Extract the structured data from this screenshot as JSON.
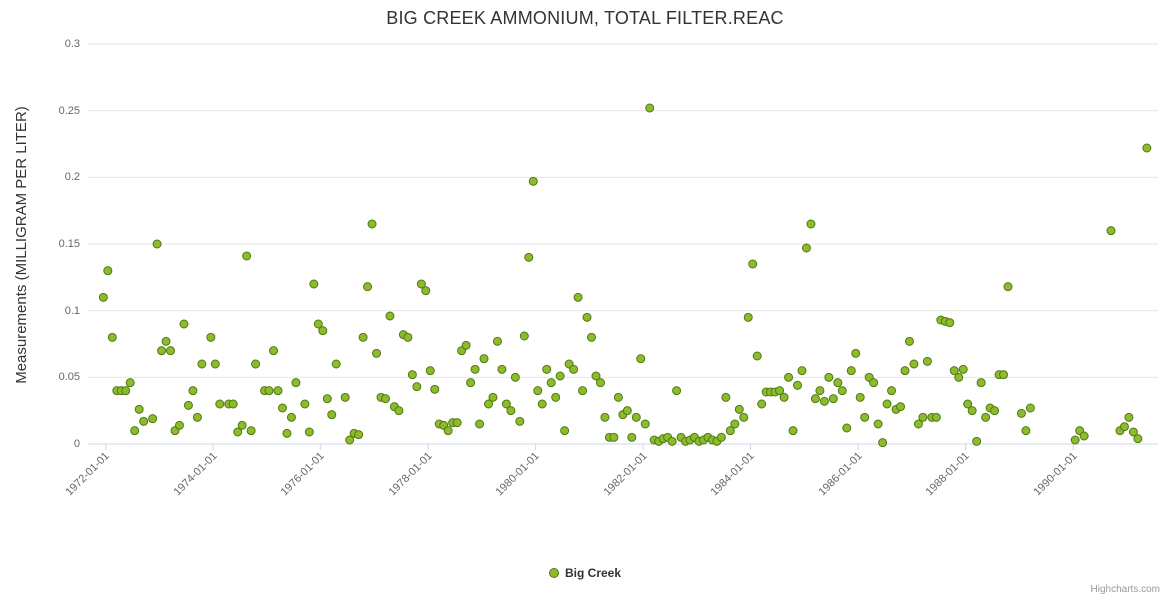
{
  "credits": "Highcharts.com",
  "chart_data": {
    "type": "scatter",
    "title": "BIG CREEK AMMONIUM, TOTAL FILTER.REAC",
    "xlabel": "",
    "ylabel": "Measurements (MILLIGRAM PER LITER)",
    "ylim": [
      0,
      0.3
    ],
    "y_ticks": [
      0,
      0.05,
      0.1,
      0.15,
      0.2,
      0.25,
      0.3
    ],
    "y_tick_labels": [
      "0",
      "0.05",
      "0.1",
      "0.15",
      "0.2",
      "0.25",
      "0.3"
    ],
    "x_ticks": [
      "1972-01-01",
      "1974-01-01",
      "1976-01-01",
      "1978-01-01",
      "1980-01-01",
      "1982-01-01",
      "1984-01-01",
      "1986-01-01",
      "1988-01-01",
      "1990-01-01"
    ],
    "x_range_decimal_years": [
      1971.67,
      1991.58
    ],
    "grid": true,
    "legend_position": "bottom",
    "colors": {
      "marker": "#8dbb2d",
      "marker_stroke": "#4f7a12",
      "grid": "#e6e6e6",
      "axis_line": "#ccd6eb",
      "title_text": "#333333",
      "tick_text": "#666666"
    },
    "series": [
      {
        "name": "Big Creek",
        "points": [
          [
            "1971-12",
            0.11
          ],
          [
            "1972-01",
            0.13
          ],
          [
            "1972-02",
            0.08
          ],
          [
            "1972-03",
            0.04
          ],
          [
            "1972-04",
            0.04
          ],
          [
            "1972-05",
            0.04
          ],
          [
            "1972-06",
            0.046
          ],
          [
            "1972-07",
            0.01
          ],
          [
            "1972-08",
            0.026
          ],
          [
            "1972-09",
            0.017
          ],
          [
            "1972-11",
            0.019
          ],
          [
            "1972-12",
            0.15
          ],
          [
            "1973-01",
            0.07
          ],
          [
            "1973-02",
            0.077
          ],
          [
            "1973-03",
            0.07
          ],
          [
            "1973-04",
            0.01
          ],
          [
            "1973-05",
            0.014
          ],
          [
            "1973-06",
            0.09
          ],
          [
            "1973-07",
            0.029
          ],
          [
            "1973-08",
            0.04
          ],
          [
            "1973-09",
            0.02
          ],
          [
            "1973-10",
            0.06
          ],
          [
            "1973-12",
            0.08
          ],
          [
            "1974-01",
            0.06
          ],
          [
            "1974-02",
            0.03
          ],
          [
            "1974-04",
            0.03
          ],
          [
            "1974-05",
            0.03
          ],
          [
            "1974-06",
            0.009
          ],
          [
            "1974-07",
            0.014
          ],
          [
            "1974-08",
            0.141
          ],
          [
            "1974-09",
            0.01
          ],
          [
            "1974-10",
            0.06
          ],
          [
            "1974-12",
            0.04
          ],
          [
            "1975-01",
            0.04
          ],
          [
            "1975-02",
            0.07
          ],
          [
            "1975-03",
            0.04
          ],
          [
            "1975-04",
            0.027
          ],
          [
            "1975-05",
            0.008
          ],
          [
            "1975-06",
            0.02
          ],
          [
            "1975-07",
            0.046
          ],
          [
            "1975-09",
            0.03
          ],
          [
            "1975-10",
            0.009
          ],
          [
            "1975-11",
            0.12
          ],
          [
            "1975-12",
            0.09
          ],
          [
            "1976-01",
            0.085
          ],
          [
            "1976-02",
            0.034
          ],
          [
            "1976-03",
            0.022
          ],
          [
            "1976-04",
            0.06
          ],
          [
            "1976-06",
            0.035
          ],
          [
            "1976-07",
            0.003
          ],
          [
            "1976-08",
            0.008
          ],
          [
            "1976-09",
            0.007
          ],
          [
            "1976-10",
            0.08
          ],
          [
            "1976-11",
            0.118
          ],
          [
            "1976-12",
            0.165
          ],
          [
            "1977-01",
            0.068
          ],
          [
            "1977-02",
            0.035
          ],
          [
            "1977-03",
            0.034
          ],
          [
            "1977-04",
            0.096
          ],
          [
            "1977-05",
            0.028
          ],
          [
            "1977-06",
            0.025
          ],
          [
            "1977-07",
            0.082
          ],
          [
            "1977-08",
            0.08
          ],
          [
            "1977-09",
            0.052
          ],
          [
            "1977-10",
            0.043
          ],
          [
            "1977-11",
            0.12
          ],
          [
            "1977-12",
            0.115
          ],
          [
            "1978-01",
            0.055
          ],
          [
            "1978-02",
            0.041
          ],
          [
            "1978-03",
            0.015
          ],
          [
            "1978-04",
            0.014
          ],
          [
            "1978-05",
            0.01
          ],
          [
            "1978-06",
            0.016
          ],
          [
            "1978-07",
            0.016
          ],
          [
            "1978-08",
            0.07
          ],
          [
            "1978-09",
            0.074
          ],
          [
            "1978-10",
            0.046
          ],
          [
            "1978-11",
            0.056
          ],
          [
            "1978-12",
            0.015
          ],
          [
            "1979-01",
            0.064
          ],
          [
            "1979-02",
            0.03
          ],
          [
            "1979-03",
            0.035
          ],
          [
            "1979-04",
            0.077
          ],
          [
            "1979-05",
            0.056
          ],
          [
            "1979-06",
            0.03
          ],
          [
            "1979-07",
            0.025
          ],
          [
            "1979-08",
            0.05
          ],
          [
            "1979-09",
            0.017
          ],
          [
            "1979-10",
            0.081
          ],
          [
            "1979-11",
            0.14
          ],
          [
            "1979-12",
            0.197
          ],
          [
            "1980-01",
            0.04
          ],
          [
            "1980-02",
            0.03
          ],
          [
            "1980-03",
            0.056
          ],
          [
            "1980-04",
            0.046
          ],
          [
            "1980-05",
            0.035
          ],
          [
            "1980-06",
            0.051
          ],
          [
            "1980-07",
            0.01
          ],
          [
            "1980-08",
            0.06
          ],
          [
            "1980-09",
            0.056
          ],
          [
            "1980-10",
            0.11
          ],
          [
            "1980-11",
            0.04
          ],
          [
            "1980-12",
            0.095
          ],
          [
            "1981-01",
            0.08
          ],
          [
            "1981-02",
            0.051
          ],
          [
            "1981-03",
            0.046
          ],
          [
            "1981-04",
            0.02
          ],
          [
            "1981-05",
            0.005
          ],
          [
            "1981-06",
            0.005
          ],
          [
            "1981-07",
            0.035
          ],
          [
            "1981-08",
            0.022
          ],
          [
            "1981-09",
            0.025
          ],
          [
            "1981-10",
            0.005
          ],
          [
            "1981-11",
            0.02
          ],
          [
            "1981-12",
            0.064
          ],
          [
            "1982-01",
            0.015
          ],
          [
            "1982-02",
            0.252
          ],
          [
            "1982-03",
            0.003
          ],
          [
            "1982-04",
            0.002
          ],
          [
            "1982-05",
            0.004
          ],
          [
            "1982-06",
            0.005
          ],
          [
            "1982-07",
            0.002
          ],
          [
            "1982-08",
            0.04
          ],
          [
            "1982-09",
            0.005
          ],
          [
            "1982-10",
            0.002
          ],
          [
            "1982-11",
            0.003
          ],
          [
            "1982-12",
            0.005
          ],
          [
            "1983-01",
            0.002
          ],
          [
            "1983-02",
            0.003
          ],
          [
            "1983-03",
            0.005
          ],
          [
            "1983-04",
            0.003
          ],
          [
            "1983-05",
            0.002
          ],
          [
            "1983-06",
            0.005
          ],
          [
            "1983-07",
            0.035
          ],
          [
            "1983-08",
            0.01
          ],
          [
            "1983-09",
            0.015
          ],
          [
            "1983-10",
            0.026
          ],
          [
            "1983-11",
            0.02
          ],
          [
            "1983-12",
            0.095
          ],
          [
            "1984-01",
            0.135
          ],
          [
            "1984-02",
            0.066
          ],
          [
            "1984-03",
            0.03
          ],
          [
            "1984-04",
            0.039
          ],
          [
            "1984-05",
            0.039
          ],
          [
            "1984-06",
            0.039
          ],
          [
            "1984-07",
            0.04
          ],
          [
            "1984-08",
            0.035
          ],
          [
            "1984-09",
            0.05
          ],
          [
            "1984-10",
            0.01
          ],
          [
            "1984-11",
            0.044
          ],
          [
            "1984-12",
            0.055
          ],
          [
            "1985-01",
            0.147
          ],
          [
            "1985-02",
            0.165
          ],
          [
            "1985-03",
            0.034
          ],
          [
            "1985-04",
            0.04
          ],
          [
            "1985-05",
            0.032
          ],
          [
            "1985-06",
            0.05
          ],
          [
            "1985-07",
            0.034
          ],
          [
            "1985-08",
            0.046
          ],
          [
            "1985-09",
            0.04
          ],
          [
            "1985-10",
            0.012
          ],
          [
            "1985-11",
            0.055
          ],
          [
            "1985-12",
            0.068
          ],
          [
            "1986-01",
            0.035
          ],
          [
            "1986-02",
            0.02
          ],
          [
            "1986-03",
            0.05
          ],
          [
            "1986-04",
            0.046
          ],
          [
            "1986-05",
            0.015
          ],
          [
            "1986-06",
            0.001
          ],
          [
            "1986-07",
            0.03
          ],
          [
            "1986-08",
            0.04
          ],
          [
            "1986-09",
            0.026
          ],
          [
            "1986-10",
            0.028
          ],
          [
            "1986-11",
            0.055
          ],
          [
            "1986-12",
            0.077
          ],
          [
            "1987-01",
            0.06
          ],
          [
            "1987-02",
            0.015
          ],
          [
            "1987-03",
            0.02
          ],
          [
            "1987-04",
            0.062
          ],
          [
            "1987-05",
            0.02
          ],
          [
            "1987-06",
            0.02
          ],
          [
            "1987-07",
            0.093
          ],
          [
            "1987-08",
            0.092
          ],
          [
            "1987-09",
            0.091
          ],
          [
            "1987-10",
            0.055
          ],
          [
            "1987-11",
            0.05
          ],
          [
            "1987-12",
            0.056
          ],
          [
            "1988-01",
            0.03
          ],
          [
            "1988-02",
            0.025
          ],
          [
            "1988-03",
            0.002
          ],
          [
            "1988-04",
            0.046
          ],
          [
            "1988-05",
            0.02
          ],
          [
            "1988-06",
            0.027
          ],
          [
            "1988-07",
            0.025
          ],
          [
            "1988-08",
            0.052
          ],
          [
            "1988-09",
            0.052
          ],
          [
            "1988-10",
            0.118
          ],
          [
            "1989-01",
            0.023
          ],
          [
            "1989-02",
            0.01
          ],
          [
            "1989-03",
            0.027
          ],
          [
            "1990-01",
            0.003
          ],
          [
            "1990-02",
            0.01
          ],
          [
            "1990-03",
            0.006
          ],
          [
            "1990-09",
            0.16
          ],
          [
            "1990-11",
            0.01
          ],
          [
            "1990-12",
            0.013
          ],
          [
            "1991-01",
            0.02
          ],
          [
            "1991-02",
            0.009
          ],
          [
            "1991-03",
            0.004
          ],
          [
            "1991-05",
            0.222
          ]
        ]
      }
    ]
  }
}
